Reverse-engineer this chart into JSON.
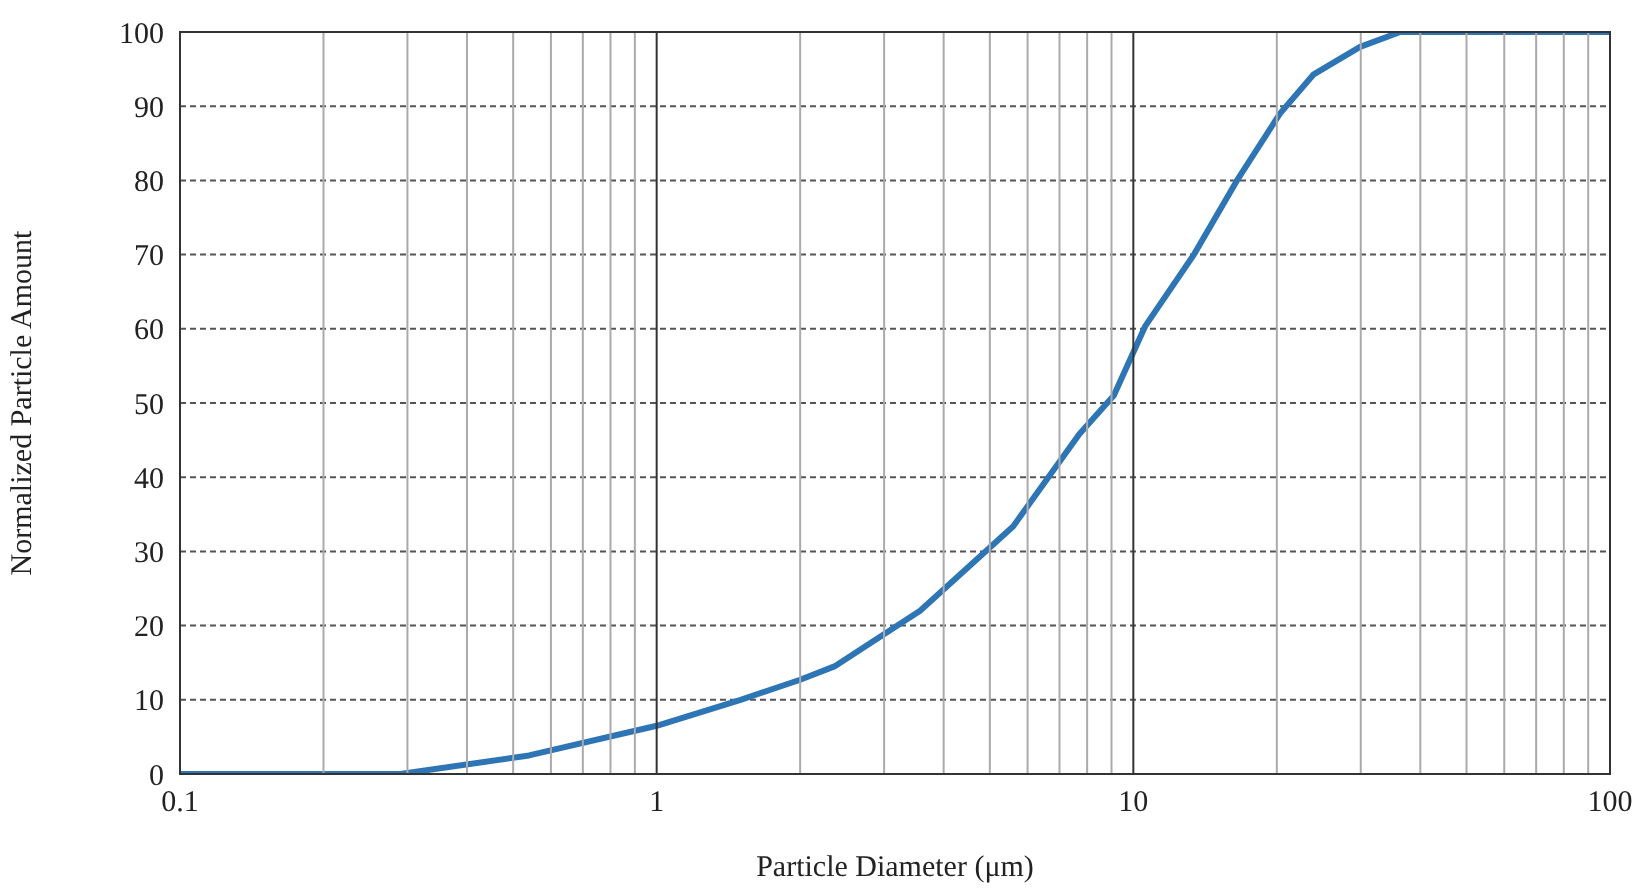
{
  "chart_data": {
    "type": "line",
    "xlabel": "Particle Diameter (μm)",
    "ylabel": "Normalized Particle Amount",
    "x": [
      0.1,
      0.2,
      0.29,
      0.54,
      1.0,
      1.5,
      2.0,
      2.36,
      3.57,
      5.6,
      7.7,
      9.1,
      10.6,
      13.4,
      16.5,
      20.3,
      23.9,
      29.9,
      36.3,
      50,
      100
    ],
    "series": [
      {
        "color": "#2e75b6",
        "values": [
          0,
          0,
          0,
          2.5,
          6.5,
          10,
          12.7,
          14.5,
          22,
          33.4,
          45.8,
          51,
          60.4,
          70,
          80,
          89,
          94.3,
          98,
          100,
          100,
          100
        ]
      }
    ],
    "log": "x",
    "xlim": [
      0.1,
      100
    ],
    "xticks": [
      0.1,
      1,
      10,
      100
    ],
    "ylim": [
      0,
      100
    ],
    "yticks": [
      0,
      10,
      20,
      30,
      40,
      50,
      60,
      70,
      80,
      90,
      100
    ],
    "grid": true,
    "marker": "none",
    "line_style": "solid"
  }
}
